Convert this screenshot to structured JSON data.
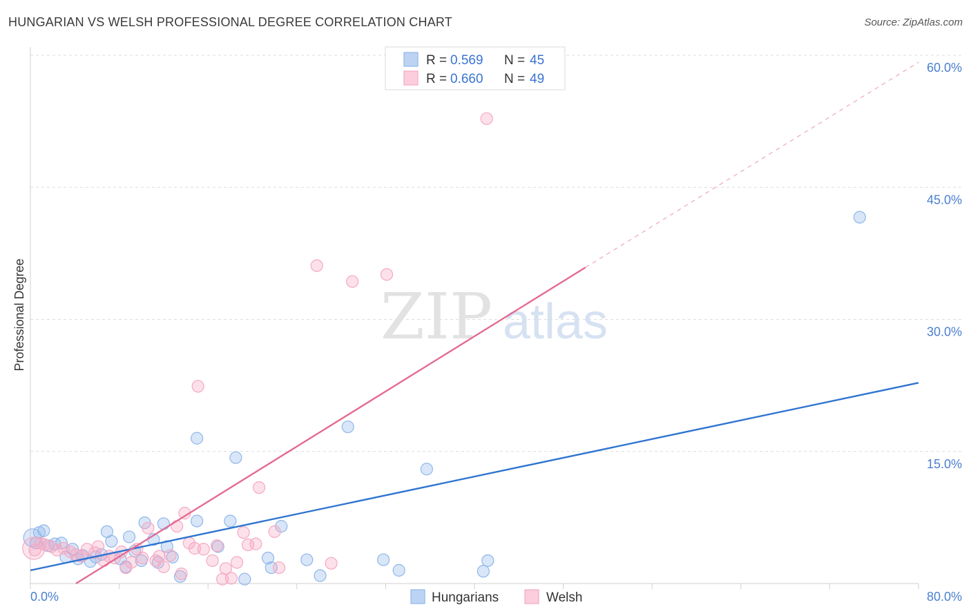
{
  "header": {
    "title": "HUNGARIAN VS WELSH PROFESSIONAL DEGREE CORRELATION CHART",
    "source": "Source: ZipAtlas.com"
  },
  "chart_data": {
    "type": "scatter",
    "title": "HUNGARIAN VS WELSH PROFESSIONAL DEGREE CORRELATION CHART",
    "ylabel": "Professional Degree",
    "xlabel": "",
    "xlim": [
      0,
      80
    ],
    "ylim": [
      0,
      60
    ],
    "x_tick_labels": [
      "0.0%",
      "80.0%"
    ],
    "y_ticks": [
      15,
      30,
      45,
      60
    ],
    "y_tick_labels": [
      "15.0%",
      "30.0%",
      "45.0%",
      "60.0%"
    ],
    "watermark": {
      "zip": "ZIP",
      "atlas": "atlas"
    },
    "legend": [
      {
        "r_label": "R = ",
        "r": "0.569",
        "n_label": "N = ",
        "n": "45"
      },
      {
        "r_label": "R = ",
        "r": "0.660",
        "n_label": "N = ",
        "n": "49"
      }
    ],
    "series": [
      {
        "name": "Hungarians",
        "color": "#8fb6ea",
        "line_color": "#2f74d0",
        "trend": {
          "x0": 0,
          "y0": 1.5,
          "x1": 80,
          "y1": 22.8
        },
        "points": [
          [
            0.5,
            4.6
          ],
          [
            0.8,
            5.8
          ],
          [
            1.2,
            6.0
          ],
          [
            1.6,
            4.3
          ],
          [
            2.2,
            4.5
          ],
          [
            2.8,
            4.6
          ],
          [
            3.2,
            3.0
          ],
          [
            3.8,
            3.9
          ],
          [
            4.3,
            2.8
          ],
          [
            4.7,
            3.2
          ],
          [
            5.4,
            2.5
          ],
          [
            5.9,
            3.0
          ],
          [
            6.4,
            3.3
          ],
          [
            6.9,
            5.9
          ],
          [
            7.3,
            4.8
          ],
          [
            8.1,
            2.8
          ],
          [
            8.6,
            1.9
          ],
          [
            8.9,
            5.3
          ],
          [
            9.4,
            3.7
          ],
          [
            10.0,
            2.6
          ],
          [
            10.3,
            6.9
          ],
          [
            11.1,
            5.0
          ],
          [
            11.5,
            2.4
          ],
          [
            12.0,
            6.8
          ],
          [
            12.3,
            4.2
          ],
          [
            12.8,
            3.0
          ],
          [
            13.5,
            0.8
          ],
          [
            15.0,
            7.1
          ],
          [
            15.0,
            16.5
          ],
          [
            16.9,
            4.2
          ],
          [
            18.0,
            7.1
          ],
          [
            18.5,
            14.3
          ],
          [
            19.3,
            0.5
          ],
          [
            21.4,
            2.9
          ],
          [
            21.7,
            1.8
          ],
          [
            22.6,
            6.5
          ],
          [
            24.9,
            2.7
          ],
          [
            26.1,
            0.9
          ],
          [
            28.6,
            17.8
          ],
          [
            31.8,
            2.7
          ],
          [
            33.2,
            1.5
          ],
          [
            35.7,
            13.0
          ],
          [
            40.8,
            1.4
          ],
          [
            41.2,
            2.6
          ],
          [
            74.7,
            41.6
          ]
        ]
      },
      {
        "name": "Welsh",
        "color": "#f5a8c2",
        "line_color": "#e46a92",
        "trend": {
          "x0": 4.1,
          "y0": 0,
          "x1": 50,
          "y1": 35.9
        },
        "trend_ext": {
          "x0": 50,
          "y0": 35.9,
          "x1": 80,
          "y1": 59.2
        },
        "points": [
          [
            0.4,
            3.8
          ],
          [
            0.9,
            4.6
          ],
          [
            1.3,
            4.4
          ],
          [
            1.9,
            4.2
          ],
          [
            2.4,
            3.8
          ],
          [
            3.0,
            4.0
          ],
          [
            3.6,
            3.6
          ],
          [
            4.1,
            3.3
          ],
          [
            4.6,
            3.1
          ],
          [
            5.1,
            3.9
          ],
          [
            5.8,
            3.5
          ],
          [
            6.1,
            4.2
          ],
          [
            6.6,
            2.6
          ],
          [
            7.1,
            3.1
          ],
          [
            7.6,
            2.9
          ],
          [
            8.2,
            3.6
          ],
          [
            8.6,
            1.8
          ],
          [
            9.1,
            2.4
          ],
          [
            9.6,
            3.9
          ],
          [
            10.1,
            2.9
          ],
          [
            10.6,
            6.3
          ],
          [
            11.3,
            2.6
          ],
          [
            11.6,
            3.1
          ],
          [
            12.0,
            1.9
          ],
          [
            12.6,
            3.2
          ],
          [
            13.2,
            6.5
          ],
          [
            13.6,
            1.1
          ],
          [
            13.9,
            8.0
          ],
          [
            14.3,
            4.6
          ],
          [
            14.8,
            4.0
          ],
          [
            15.1,
            22.4
          ],
          [
            15.6,
            3.9
          ],
          [
            16.4,
            2.6
          ],
          [
            16.8,
            4.3
          ],
          [
            17.3,
            0.5
          ],
          [
            17.6,
            1.7
          ],
          [
            18.1,
            0.6
          ],
          [
            18.6,
            2.4
          ],
          [
            19.2,
            5.8
          ],
          [
            19.6,
            4.4
          ],
          [
            20.3,
            4.5
          ],
          [
            20.6,
            10.9
          ],
          [
            22.0,
            5.9
          ],
          [
            22.4,
            1.8
          ],
          [
            25.8,
            36.1
          ],
          [
            27.1,
            2.3
          ],
          [
            29.0,
            34.3
          ],
          [
            32.1,
            35.1
          ],
          [
            41.1,
            52.8
          ]
        ]
      }
    ]
  },
  "bottom_legend": {
    "items": [
      {
        "label": "Hungarians"
      },
      {
        "label": "Welsh"
      }
    ]
  }
}
